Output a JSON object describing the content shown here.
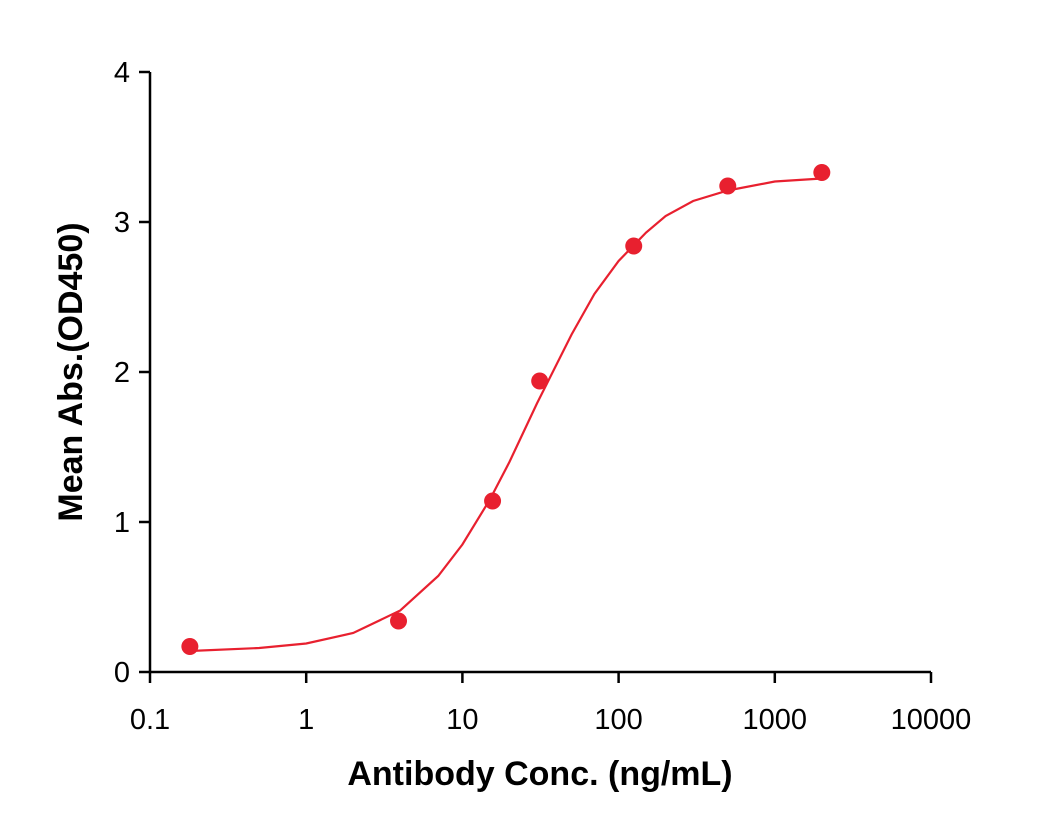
{
  "chart_data": {
    "type": "scatter",
    "xlabel": "Antibody Conc. (ng/mL)",
    "ylabel": "Mean Abs.(OD450)",
    "xscale": "log",
    "xlim": [
      0.1,
      10000
    ],
    "xticks": [
      0.1,
      1,
      10,
      100,
      1000,
      10000
    ],
    "ylim": [
      0,
      4
    ],
    "yticks": [
      0,
      1,
      2,
      3,
      4
    ],
    "grid": false,
    "series": [
      {
        "type": "scatter",
        "color": "#e8202f",
        "x": [
          0.18,
          3.9,
          15.6,
          31.25,
          125,
          500,
          2000
        ],
        "values": [
          0.17,
          0.34,
          1.14,
          1.94,
          2.84,
          3.24,
          3.33
        ]
      },
      {
        "type": "line",
        "color": "#e8202f",
        "x": [
          0.18,
          0.5,
          1,
          2,
          4,
          7,
          10,
          15,
          20,
          30,
          50,
          70,
          100,
          150,
          200,
          300,
          500,
          1000,
          2000
        ],
        "values": [
          0.14,
          0.16,
          0.19,
          0.26,
          0.41,
          0.64,
          0.85,
          1.15,
          1.4,
          1.79,
          2.25,
          2.52,
          2.74,
          2.93,
          3.04,
          3.14,
          3.21,
          3.27,
          3.29
        ]
      }
    ]
  }
}
